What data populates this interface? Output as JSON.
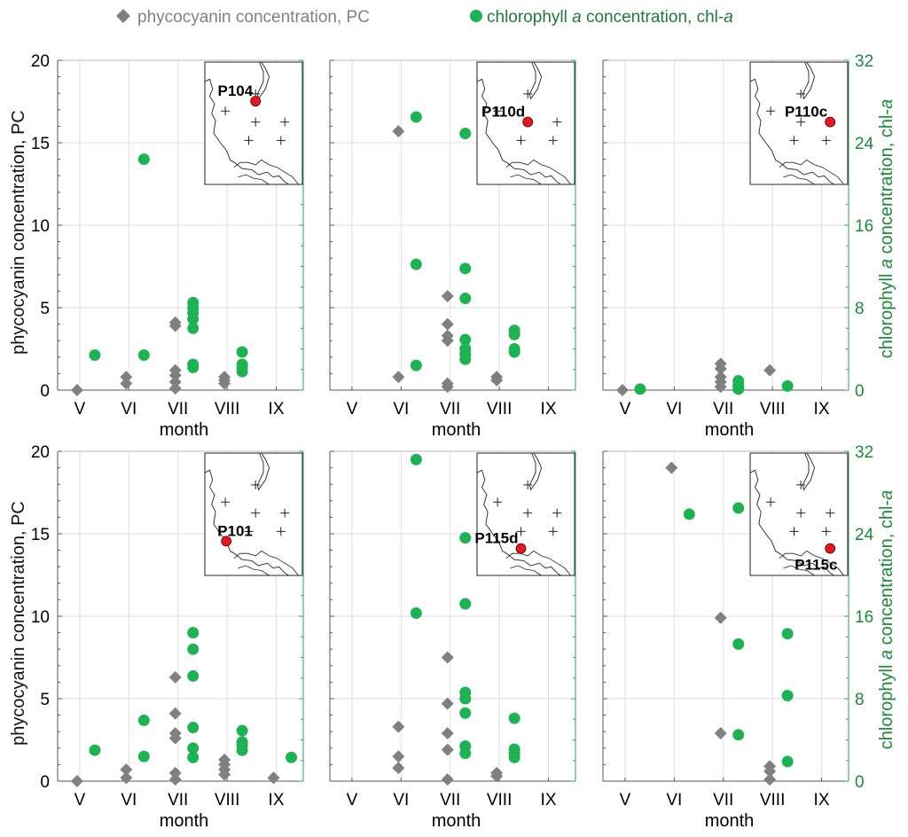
{
  "legend": {
    "pc_label": "phycocyanin concentration, PC",
    "chl_prefix": "chlorophyll ",
    "chl_italic": "a",
    "chl_suffix": " concentration, chl-",
    "chl_end_italic": "a"
  },
  "colors": {
    "pc": "#808080",
    "chl": "#1db352",
    "station": "#e8161e",
    "axis_right": "#1d8a3a",
    "grid": "#dedede"
  },
  "axes": {
    "xlabel": "month",
    "ylabel_left": "phycocyanin concentration, PC",
    "ylabel_right_prefix": "chlorophyll ",
    "ylabel_right_italic": "a",
    "ylabel_right_suffix": " concentration, chl-",
    "ylabel_right_end_italic": "a",
    "x_tick_labels": [
      "V",
      "VI",
      "VII",
      "VIII",
      "IX"
    ],
    "x_ticks": [
      5,
      6,
      7,
      8,
      9
    ],
    "xlim": [
      4.55,
      9.55
    ],
    "pc_ylim": [
      0,
      20
    ],
    "pc_ticks": [
      0,
      5,
      10,
      15,
      20
    ],
    "chl_ylim": [
      0,
      32
    ],
    "chl_ticks": [
      0,
      8,
      16,
      24,
      32
    ]
  },
  "chart_data": [
    {
      "type": "scatter",
      "station": "P104",
      "pc": [
        [
          5,
          0
        ],
        [
          6,
          0.4
        ],
        [
          6,
          0.8
        ],
        [
          7,
          0.1
        ],
        [
          7,
          0.5
        ],
        [
          7,
          0.9
        ],
        [
          7,
          1.2
        ],
        [
          7,
          3.9
        ],
        [
          7,
          4.1
        ],
        [
          8,
          0.4
        ],
        [
          8,
          0.6
        ],
        [
          8,
          0.8
        ]
      ],
      "chl": [
        [
          5,
          3.4
        ],
        [
          6,
          3.4
        ],
        [
          6,
          22.4
        ],
        [
          7,
          2.2
        ],
        [
          7,
          2.5
        ],
        [
          7,
          6
        ],
        [
          7,
          6.9
        ],
        [
          7,
          7.5
        ],
        [
          7,
          8
        ],
        [
          7,
          8.5
        ],
        [
          8,
          1.8
        ],
        [
          8,
          2.2
        ],
        [
          8,
          2.5
        ],
        [
          8,
          3.7
        ]
      ]
    },
    {
      "type": "scatter",
      "station": "P110d",
      "pc": [
        [
          6,
          0.8
        ],
        [
          6,
          15.7
        ],
        [
          7,
          0.2
        ],
        [
          7,
          0.4
        ],
        [
          7,
          3
        ],
        [
          7,
          3.3
        ],
        [
          7,
          4
        ],
        [
          7,
          5.7
        ],
        [
          8,
          0.6
        ],
        [
          8,
          0.8
        ]
      ],
      "chl": [
        [
          6,
          2.4
        ],
        [
          6,
          12.2
        ],
        [
          6,
          26.5
        ],
        [
          7,
          3
        ],
        [
          7,
          3.5
        ],
        [
          7,
          4
        ],
        [
          7,
          4.9
        ],
        [
          7,
          8.9
        ],
        [
          7,
          11.8
        ],
        [
          7,
          24.9
        ],
        [
          8,
          3.7
        ],
        [
          8,
          4
        ],
        [
          8,
          5.4
        ],
        [
          8,
          5.8
        ]
      ]
    },
    {
      "type": "scatter",
      "station": "P110c",
      "pc": [
        [
          5,
          0
        ],
        [
          7,
          0.2
        ],
        [
          7,
          0.5
        ],
        [
          7,
          0.8
        ],
        [
          7,
          1.3
        ],
        [
          7,
          1.6
        ],
        [
          8,
          1.2
        ]
      ],
      "chl": [
        [
          5,
          0.1
        ],
        [
          7,
          0.1
        ],
        [
          7,
          0.3
        ],
        [
          7,
          0.5
        ],
        [
          7,
          0.9
        ],
        [
          8,
          0.4
        ]
      ]
    },
    {
      "type": "scatter",
      "station": "P101",
      "pc": [
        [
          5,
          0
        ],
        [
          6,
          0.2
        ],
        [
          6,
          0.7
        ],
        [
          7,
          0.1
        ],
        [
          7,
          0.5
        ],
        [
          7,
          2.6
        ],
        [
          7,
          2.9
        ],
        [
          7,
          4.1
        ],
        [
          7,
          6.3
        ],
        [
          8,
          0.4
        ],
        [
          8,
          0.7
        ],
        [
          8,
          1
        ],
        [
          8,
          1.3
        ],
        [
          9,
          0.2
        ]
      ],
      "chl": [
        [
          5,
          3
        ],
        [
          6,
          2.4
        ],
        [
          6,
          5.9
        ],
        [
          7,
          2.3
        ],
        [
          7,
          3.2
        ],
        [
          7,
          5.2
        ],
        [
          7,
          10.2
        ],
        [
          7,
          12.8
        ],
        [
          7,
          14.4
        ],
        [
          8,
          3
        ],
        [
          8,
          3.5
        ],
        [
          8,
          3.8
        ],
        [
          8,
          4.9
        ],
        [
          9,
          2.3
        ]
      ]
    },
    {
      "type": "scatter",
      "station": "P115d",
      "pc": [
        [
          6,
          0.8
        ],
        [
          6,
          1.5
        ],
        [
          6,
          3.3
        ],
        [
          7,
          0.1
        ],
        [
          7,
          1.9
        ],
        [
          7,
          2.9
        ],
        [
          7,
          4.7
        ],
        [
          7,
          7.5
        ],
        [
          8,
          0.3
        ],
        [
          8,
          0.5
        ]
      ],
      "chl": [
        [
          6,
          16.3
        ],
        [
          6,
          31.2
        ],
        [
          7,
          2.7
        ],
        [
          7,
          3.4
        ],
        [
          7,
          6.6
        ],
        [
          7,
          8
        ],
        [
          7,
          8.6
        ],
        [
          7,
          17.2
        ],
        [
          7,
          23.6
        ],
        [
          8,
          2.3
        ],
        [
          8,
          2.7
        ],
        [
          8,
          3.1
        ],
        [
          8,
          6.1
        ]
      ]
    },
    {
      "type": "scatter",
      "station": "P115c",
      "pc": [
        [
          6,
          19
        ],
        [
          7,
          2.9
        ],
        [
          7,
          9.9
        ],
        [
          8,
          0.1
        ],
        [
          8,
          0.6
        ],
        [
          8,
          0.9
        ]
      ],
      "chl": [
        [
          6,
          25.9
        ],
        [
          7,
          4.5
        ],
        [
          7,
          13.3
        ],
        [
          7,
          26.5
        ],
        [
          8,
          1.9
        ],
        [
          8,
          8.3
        ],
        [
          8,
          14.3
        ]
      ]
    }
  ]
}
